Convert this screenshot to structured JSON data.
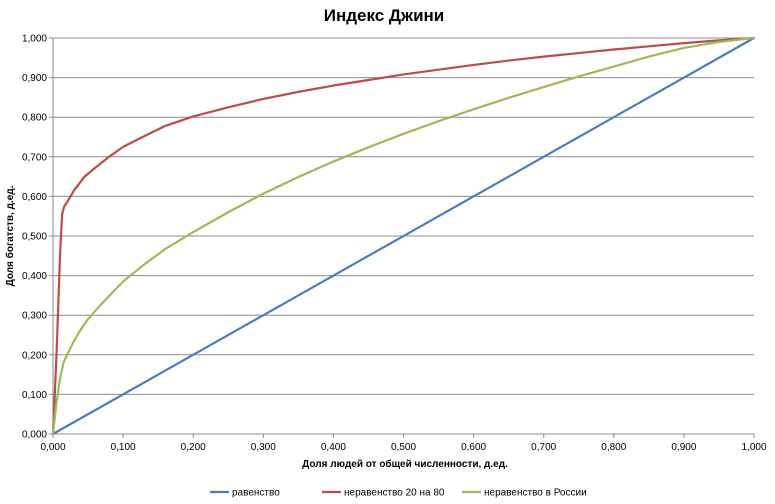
{
  "chart_data": {
    "type": "line",
    "title": "Индекс Джини",
    "xlabel": "Доля   людей от общей численности, д.ед.",
    "ylabel": "Доля богатств, д.ед.",
    "xlim": [
      0,
      1
    ],
    "ylim": [
      0,
      1
    ],
    "xticks": [
      "0,000",
      "0,100",
      "0,200",
      "0,300",
      "0,400",
      "0,500",
      "0,600",
      "0,700",
      "0,800",
      "0,900",
      "1,000"
    ],
    "yticks": [
      "0,000",
      "0,100",
      "0,200",
      "0,300",
      "0,400",
      "0,500",
      "0,600",
      "0,700",
      "0,800",
      "0,900",
      "1,000"
    ],
    "grid": "horizontal",
    "legend_position": "bottom",
    "series": [
      {
        "name": "равенство",
        "color": "#4a7ebb",
        "x": [
          0,
          1
        ],
        "y": [
          0,
          1
        ]
      },
      {
        "name": "неравенство 20 на 80",
        "color": "#be4b48",
        "x": [
          0,
          0.005,
          0.01,
          0.013,
          0.016,
          0.02,
          0.03,
          0.045,
          0.06,
          0.08,
          0.1,
          0.13,
          0.16,
          0.2,
          0.25,
          0.3,
          0.35,
          0.4,
          0.45,
          0.5,
          0.55,
          0.6,
          0.65,
          0.7,
          0.75,
          0.8,
          0.85,
          0.9,
          0.95,
          1.0
        ],
        "y": [
          0,
          0.2,
          0.45,
          0.555,
          0.575,
          0.585,
          0.615,
          0.65,
          0.672,
          0.7,
          0.725,
          0.752,
          0.778,
          0.802,
          0.825,
          0.846,
          0.864,
          0.88,
          0.894,
          0.908,
          0.92,
          0.932,
          0.943,
          0.953,
          0.962,
          0.971,
          0.979,
          0.987,
          0.994,
          1.0
        ]
      },
      {
        "name": "неравенство в России",
        "color": "#9bbb59",
        "x": [
          0,
          0.005,
          0.01,
          0.015,
          0.02,
          0.03,
          0.04,
          0.05,
          0.07,
          0.1,
          0.13,
          0.16,
          0.2,
          0.25,
          0.3,
          0.35,
          0.4,
          0.45,
          0.5,
          0.55,
          0.6,
          0.65,
          0.7,
          0.75,
          0.8,
          0.85,
          0.9,
          0.95,
          1.0
        ],
        "y": [
          0,
          0.08,
          0.14,
          0.18,
          0.2,
          0.235,
          0.265,
          0.29,
          0.33,
          0.385,
          0.428,
          0.467,
          0.51,
          0.56,
          0.607,
          0.649,
          0.688,
          0.724,
          0.758,
          0.79,
          0.82,
          0.849,
          0.876,
          0.903,
          0.928,
          0.953,
          0.975,
          0.99,
          1.0
        ]
      }
    ]
  }
}
